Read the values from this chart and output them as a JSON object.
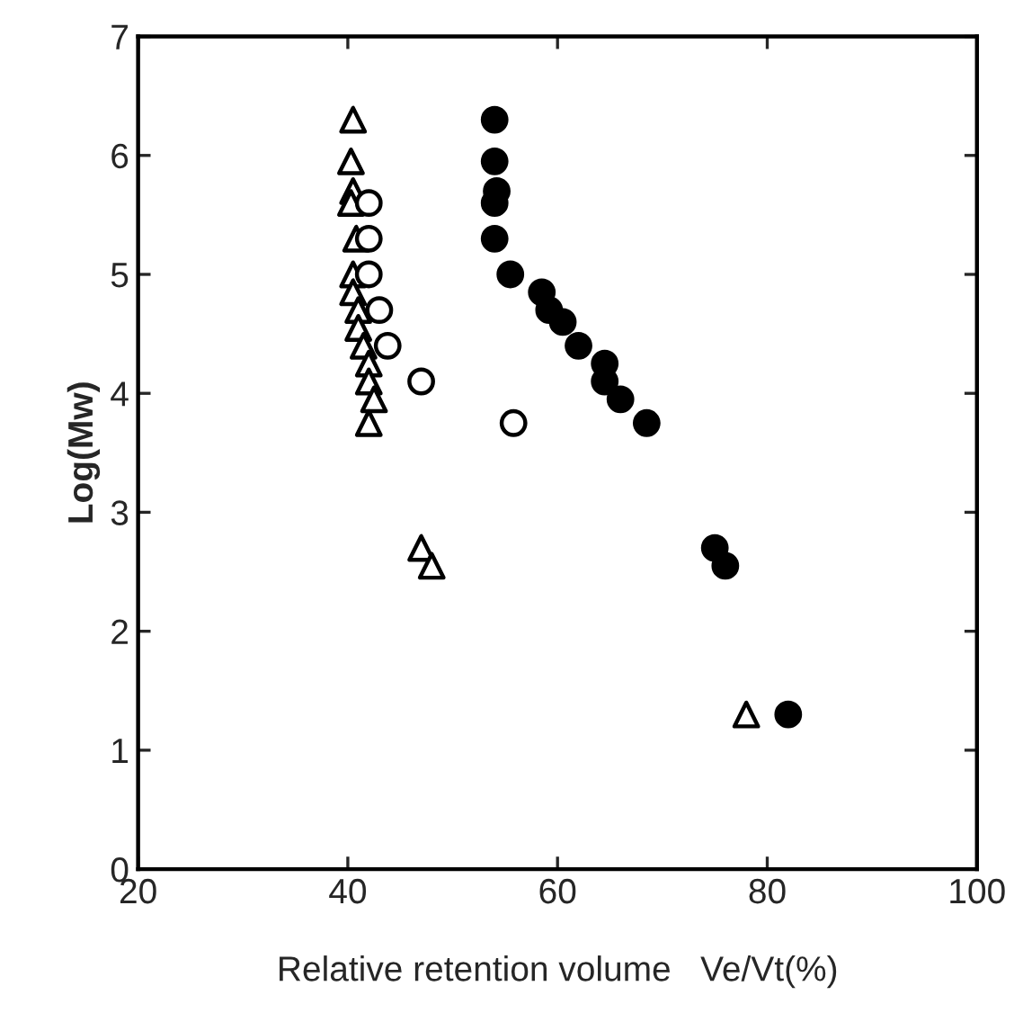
{
  "chart_data": {
    "type": "scatter",
    "xlabel": "Relative retention volume   Ve/Vt(%)",
    "ylabel": "Log(Mw)",
    "xlim": [
      20,
      100
    ],
    "ylim": [
      0,
      7
    ],
    "xticks": [
      20,
      40,
      60,
      80,
      100
    ],
    "yticks": [
      0,
      1,
      2,
      3,
      4,
      5,
      6,
      7
    ],
    "grid": false,
    "legend": false,
    "series": [
      {
        "marker": "triangle",
        "color": "#ffffff",
        "x": [
          40.5,
          40.3,
          40.5,
          40.3,
          40.8,
          40.5,
          40.5,
          41,
          41,
          41.5,
          42,
          42,
          42.5,
          42,
          47,
          48,
          78
        ],
        "values": [
          6.3,
          5.95,
          5.7,
          5.6,
          5.3,
          5.0,
          4.85,
          4.7,
          4.55,
          4.4,
          4.25,
          4.1,
          3.95,
          3.75,
          2.7,
          2.55,
          1.3
        ]
      },
      {
        "marker": "circle",
        "color": "#ffffff",
        "x": [
          42,
          42,
          42,
          43,
          43.8,
          47,
          55.8
        ],
        "values": [
          5.6,
          5.3,
          5.0,
          4.7,
          4.4,
          4.1,
          3.75
        ]
      },
      {
        "marker": "circle",
        "color": "#000000",
        "x": [
          54,
          54,
          54.2,
          54,
          54,
          55.5,
          58.5,
          59.2,
          60.5,
          62,
          64.5,
          64.5,
          66,
          68.5,
          75,
          76,
          82
        ],
        "values": [
          6.3,
          5.95,
          5.7,
          5.6,
          5.3,
          5.0,
          4.85,
          4.7,
          4.6,
          4.4,
          4.25,
          4.1,
          3.95,
          3.75,
          2.7,
          2.55,
          1.3
        ]
      }
    ]
  }
}
